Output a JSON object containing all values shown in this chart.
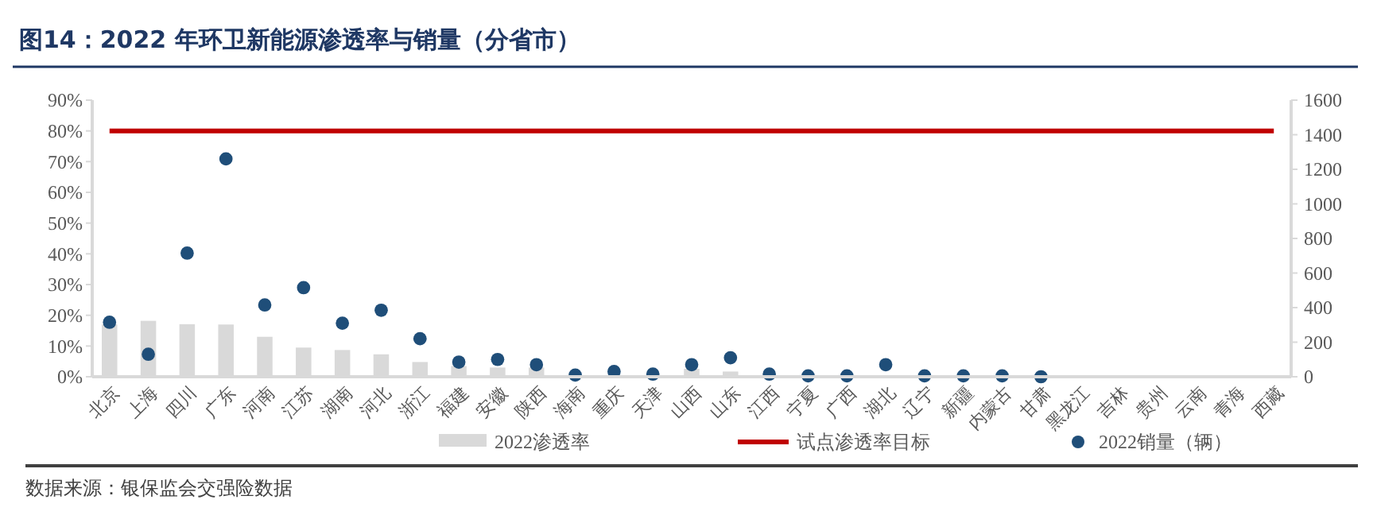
{
  "chart_data": {
    "type": "bar",
    "title": "图14：2022 年环卫新能源渗透率与销量（分省市）",
    "categories": [
      "北京",
      "上海",
      "四川",
      "广东",
      "河南",
      "江苏",
      "湖南",
      "河北",
      "浙江",
      "福建",
      "安徽",
      "陕西",
      "海南",
      "重庆",
      "天津",
      "山西",
      "山东",
      "江西",
      "宁夏",
      "广西",
      "湖北",
      "辽宁",
      "新疆",
      "内蒙古",
      "甘肃",
      "黑龙江",
      "吉林",
      "贵州",
      "云南",
      "青海",
      "西藏"
    ],
    "series": [
      {
        "name": "2022渗透率",
        "color": "#d9d9d9",
        "values": [
          17,
          18.2,
          17.1,
          17,
          13,
          9.5,
          8.7,
          7.3,
          4.8,
          3.5,
          3,
          3,
          0.5,
          0.5,
          0.5,
          2.6,
          1.7,
          0.5,
          0,
          0,
          0.5,
          0,
          0,
          0,
          0,
          0,
          0,
          0,
          0,
          0,
          0
        ]
      },
      {
        "name": "试点渗透率目标",
        "type": "line",
        "color": "#c00000",
        "marker": "none",
        "values": [
          80,
          80,
          80,
          80,
          80,
          80,
          80,
          80,
          80,
          80,
          80,
          80,
          80,
          80,
          80,
          80,
          80,
          80,
          80,
          80,
          80,
          80,
          80,
          80,
          80,
          80,
          80,
          80,
          80,
          80,
          80
        ]
      },
      {
        "name": "2022销量（辆）",
        "type": "scatter",
        "axis": "y2",
        "color": "#1f4e79",
        "marker": "circle",
        "values": [
          315,
          130,
          715,
          1260,
          415,
          515,
          310,
          385,
          220,
          85,
          100,
          70,
          10,
          30,
          15,
          70,
          110,
          15,
          5,
          5,
          70,
          5,
          5,
          5,
          0,
          null,
          null,
          null,
          null,
          null,
          null
        ]
      }
    ],
    "ylim": [
      0,
      90
    ],
    "yticks": [
      {
        "value": 0,
        "label": "0%"
      },
      {
        "value": 10,
        "label": "10%"
      },
      {
        "value": 20,
        "label": "20%"
      },
      {
        "value": 30,
        "label": "30%"
      },
      {
        "value": 40,
        "label": "40%"
      },
      {
        "value": 50,
        "label": "50%"
      },
      {
        "value": 60,
        "label": "60%"
      },
      {
        "value": 70,
        "label": "70%"
      },
      {
        "value": 80,
        "label": "80%"
      },
      {
        "value": 90,
        "label": "90%"
      }
    ],
    "y2lim": [
      0,
      1600
    ],
    "y2ticks": [
      0,
      200,
      400,
      600,
      800,
      1000,
      1200,
      1400,
      1600
    ],
    "grid": false,
    "legend": "bottom",
    "annotations": [
      "数据来源：银保监会交强险数据"
    ]
  }
}
